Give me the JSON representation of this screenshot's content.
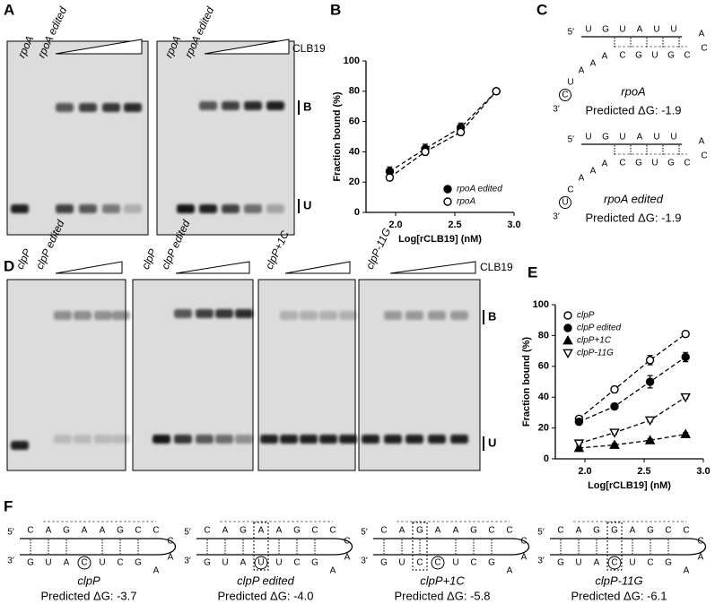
{
  "panel_letters": [
    "A",
    "B",
    "C",
    "D",
    "E",
    "F"
  ],
  "gel_a": {
    "lanes": [
      "rpoA",
      "rpoA edited",
      "rpoA",
      "rpoA edited"
    ],
    "titration": "CLB19",
    "bands": [
      "B",
      "U"
    ]
  },
  "gel_d": {
    "lanes": [
      "clpP",
      "clpP edited",
      "clpP",
      "clpP edited",
      "clpP+1C",
      "clpP-11G"
    ],
    "titration": "CLB19",
    "bands": [
      "B",
      "U"
    ]
  },
  "chart_data": [
    {
      "type": "line",
      "xlabel": "Log[rCLB19] (nM)",
      "ylabel": "Fraction bound (%)",
      "x": [
        1.95,
        2.25,
        2.55,
        2.85
      ],
      "series": [
        {
          "name": "rpoA edited",
          "color": "#000000",
          "marker": "circle",
          "filled": true,
          "values": [
            27,
            42,
            56,
            80
          ],
          "errors": [
            3,
            3,
            3,
            1
          ]
        },
        {
          "name": "rpoA",
          "color": "#000000",
          "marker": "circle",
          "filled": false,
          "values": [
            23,
            40,
            53,
            80
          ],
          "errors": [
            2,
            2,
            2,
            1
          ]
        }
      ],
      "xlim": [
        1.75,
        3.0
      ],
      "ylim": [
        0,
        100
      ],
      "xticks": [
        {
          "value": 2,
          "label": "2.0"
        },
        {
          "value": 2.5,
          "label": "2.5"
        },
        {
          "value": 3,
          "label": "3.0"
        }
      ],
      "yticks": [
        0,
        20,
        40,
        60,
        80,
        100
      ],
      "line_style": "dashed",
      "legend": "lower right"
    },
    {
      "type": "line",
      "xlabel": "Log[rCLB19] (nM)",
      "ylabel": "Fraction bound (%)",
      "x": [
        1.95,
        2.25,
        2.55,
        2.85
      ],
      "series": [
        {
          "name": "clpP",
          "color": "#000000",
          "marker": "circle",
          "filled": false,
          "values": [
            26,
            45,
            64,
            81
          ],
          "errors": [
            1,
            2,
            3,
            1
          ]
        },
        {
          "name": "clpP edited",
          "color": "#000000",
          "marker": "circle",
          "filled": true,
          "values": [
            24,
            34,
            50,
            66
          ],
          "errors": [
            1,
            2,
            4,
            3
          ]
        },
        {
          "name": "clpP+1C",
          "color": "#000000",
          "marker": "triangle-up",
          "filled": true,
          "values": [
            7,
            9,
            12,
            16
          ],
          "errors": [
            1,
            1,
            1,
            1
          ]
        },
        {
          "name": "clpP-11G",
          "color": "#000000",
          "marker": "triangle-down",
          "filled": false,
          "values": [
            10,
            17,
            25,
            40
          ],
          "errors": [
            1,
            1,
            1,
            1
          ]
        }
      ],
      "xlim": [
        1.75,
        3.0
      ],
      "ylim": [
        0,
        100
      ],
      "xticks": [
        {
          "value": 2,
          "label": "2.0"
        },
        {
          "value": 2.5,
          "label": "2.5"
        },
        {
          "value": 3,
          "label": "3.0"
        }
      ],
      "yticks": [
        0,
        20,
        40,
        60,
        80,
        100
      ],
      "line_style": "dashed",
      "legend": "upper left"
    }
  ],
  "prime5": "5′",
  "prime3": "3′",
  "structures_c": [
    {
      "name": "rpoA",
      "dg": "Predicted ΔG: -1.9",
      "top": [
        "U",
        "G",
        "U",
        "A",
        "U",
        "U"
      ],
      "loop": [
        "A",
        "C"
      ],
      "bottom": [
        "C",
        "G",
        "U",
        "G",
        "C"
      ],
      "tail": [
        "A",
        "A",
        "A",
        "U"
      ],
      "end": "C"
    },
    {
      "name": "rpoA edited",
      "dg": "Predicted ΔG: -1.9",
      "top": [
        "U",
        "G",
        "U",
        "A",
        "U",
        "U"
      ],
      "loop": [
        "A",
        "C"
      ],
      "bottom": [
        "C",
        "G",
        "U",
        "G",
        "C"
      ],
      "tail": [
        "A",
        "A",
        "A",
        "C"
      ],
      "end": "U"
    }
  ],
  "structures_f": [
    {
      "name": "clpP",
      "dg": "Predicted ΔG: -3.7",
      "top": [
        "C",
        "A",
        "G",
        "A",
        "A",
        "G",
        "C",
        "C"
      ],
      "loop": [
        "C",
        "A"
      ],
      "bottom": [
        "G",
        "U",
        "A",
        "C",
        "U",
        "C",
        "G",
        "A"
      ],
      "circled": 3
    },
    {
      "name": "clpP edited",
      "dg": "Predicted ΔG: -4.0",
      "top": [
        "C",
        "A",
        "G",
        "A",
        "A",
        "G",
        "C",
        "C"
      ],
      "loop": [
        "C",
        "A"
      ],
      "bottom": [
        "G",
        "U",
        "A",
        "U",
        "U",
        "C",
        "G",
        "A"
      ],
      "circled": 3,
      "boxed": 3
    },
    {
      "name": "clpP+1C",
      "dg": "Predicted ΔG: -5.8",
      "top": [
        "C",
        "A",
        "G",
        "A",
        "A",
        "G",
        "C",
        "C"
      ],
      "loop": [
        "C",
        "A"
      ],
      "bottom": [
        "G",
        "U",
        "C",
        "C",
        "U",
        "C",
        "G",
        "A"
      ],
      "circled": 3,
      "boxed": 2
    },
    {
      "name": "clpP-11G",
      "dg": "Predicted ΔG: -6.1",
      "top": [
        "C",
        "A",
        "G",
        "G",
        "A",
        "G",
        "C",
        "C"
      ],
      "loop": [
        "C",
        "A"
      ],
      "bottom": [
        "G",
        "U",
        "A",
        "C",
        "U",
        "C",
        "G",
        "A"
      ],
      "circled": 3,
      "boxed": 3
    }
  ]
}
